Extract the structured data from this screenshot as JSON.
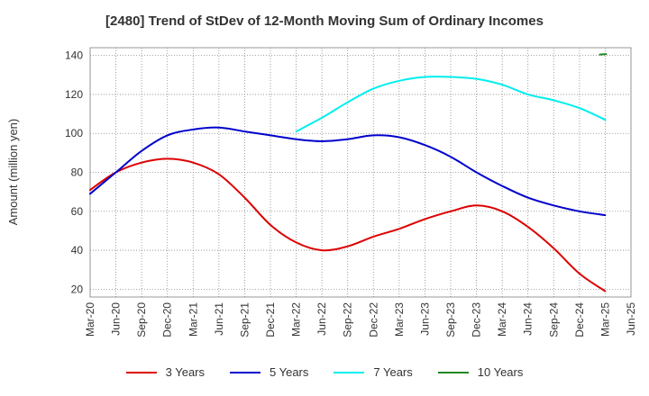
{
  "chart_data": {
    "type": "line",
    "title": "[2480]  Trend of StDev of 12-Month Moving Sum of Ordinary Incomes",
    "xlabel": "",
    "ylabel": "Amount (million yen)",
    "x_ticks": [
      "Mar-20",
      "Jun-20",
      "Sep-20",
      "Dec-20",
      "Mar-21",
      "Jun-21",
      "Sep-21",
      "Dec-21",
      "Mar-22",
      "Jun-22",
      "Sep-22",
      "Dec-22",
      "Mar-23",
      "Jun-23",
      "Sep-23",
      "Dec-23",
      "Mar-24",
      "Jun-24",
      "Sep-24",
      "Dec-24",
      "Mar-25",
      "Jun-25"
    ],
    "y_ticks": [
      20,
      40,
      60,
      80,
      100,
      120,
      140
    ],
    "ylim": [
      16,
      144
    ],
    "grid": true,
    "legend_position": "bottom",
    "series": [
      {
        "name": "3 Years",
        "color": "#dd0000",
        "x": [
          "Mar-20",
          "Jun-20",
          "Sep-20",
          "Dec-20",
          "Mar-21",
          "Jun-21",
          "Sep-21",
          "Dec-21",
          "Mar-22",
          "Jun-22",
          "Sep-22",
          "Dec-22",
          "Mar-23",
          "Jun-23",
          "Sep-23",
          "Dec-23",
          "Mar-24",
          "Jun-24",
          "Sep-24",
          "Dec-24",
          "Mar-25"
        ],
        "values": [
          71,
          80,
          85,
          87,
          85,
          79,
          67,
          53,
          44,
          40,
          42,
          47,
          51,
          56,
          60,
          63,
          60,
          52,
          41,
          28,
          19
        ]
      },
      {
        "name": "5 Years",
        "color": "#0000cc",
        "x": [
          "Mar-20",
          "Jun-20",
          "Sep-20",
          "Dec-20",
          "Mar-21",
          "Jun-21",
          "Sep-21",
          "Dec-21",
          "Mar-22",
          "Jun-22",
          "Sep-22",
          "Dec-22",
          "Mar-23",
          "Jun-23",
          "Sep-23",
          "Dec-23",
          "Mar-24",
          "Jun-24",
          "Sep-24",
          "Dec-24",
          "Mar-25"
        ],
        "values": [
          69,
          80,
          91,
          99,
          102,
          103,
          101,
          99,
          97,
          96,
          97,
          99,
          98,
          94,
          88,
          80,
          73,
          67,
          63,
          60,
          58
        ]
      },
      {
        "name": "7 Years",
        "color": "#00eeee",
        "x": [
          "Mar-22",
          "Jun-22",
          "Sep-22",
          "Dec-22",
          "Mar-23",
          "Jun-23",
          "Sep-23",
          "Dec-23",
          "Mar-24",
          "Jun-24",
          "Sep-24",
          "Dec-24",
          "Mar-25"
        ],
        "values": [
          101,
          108,
          116,
          123,
          127,
          129,
          129,
          128,
          125,
          120,
          117,
          113,
          107
        ]
      },
      {
        "name": "10 Years",
        "color": "#228822",
        "x": [
          "Mar-25"
        ],
        "values": [
          140.5
        ]
      }
    ]
  }
}
